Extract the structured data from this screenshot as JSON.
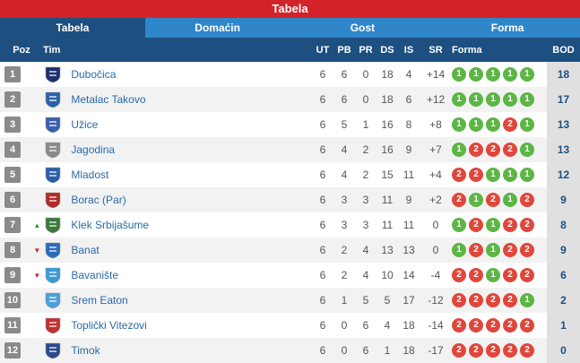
{
  "title": "Tabela",
  "tabs": [
    {
      "label": "Tabela"
    },
    {
      "label": "Domaćin"
    },
    {
      "label": "Gost"
    },
    {
      "label": "Forma"
    }
  ],
  "columns": {
    "poz": "Poz",
    "tim": "Tim",
    "ut": "UT",
    "pb": "PB",
    "pr": "PR",
    "ds": "DS",
    "is": "IS",
    "sr": "SR",
    "forma": "Forma",
    "bod": "BOD"
  },
  "colors": {
    "accent": "#d2232a",
    "header": "#1d4f80",
    "tab": "#2f87c9",
    "win": "#5cb545",
    "loss": "#e0473c"
  },
  "rows": [
    {
      "pos": "1",
      "trend": "",
      "team": "Dubočica",
      "crest": "#1e2f6e",
      "ut": "6",
      "pb": "6",
      "pr": "0",
      "ds": "18",
      "is": "4",
      "sr": "+14",
      "form": [
        "1",
        "1",
        "1",
        "1",
        "1"
      ],
      "bod": "18"
    },
    {
      "pos": "2",
      "trend": "",
      "team": "Metalac Takovo",
      "crest": "#2a62a8",
      "ut": "6",
      "pb": "6",
      "pr": "0",
      "ds": "18",
      "is": "6",
      "sr": "+12",
      "form": [
        "1",
        "1",
        "1",
        "1",
        "1"
      ],
      "bod": "17"
    },
    {
      "pos": "3",
      "trend": "",
      "team": "Užice",
      "crest": "#3a5fb0",
      "ut": "6",
      "pb": "5",
      "pr": "1",
      "ds": "16",
      "is": "8",
      "sr": "+8",
      "form": [
        "1",
        "1",
        "1",
        "2",
        "1"
      ],
      "bod": "13"
    },
    {
      "pos": "4",
      "trend": "",
      "team": "Jagodina",
      "crest": "#8a8a8a",
      "ut": "6",
      "pb": "4",
      "pr": "2",
      "ds": "16",
      "is": "9",
      "sr": "+7",
      "form": [
        "1",
        "2",
        "2",
        "2",
        "1"
      ],
      "bod": "13"
    },
    {
      "pos": "5",
      "trend": "",
      "team": "Mladost",
      "crest": "#2a5ea8",
      "ut": "6",
      "pb": "4",
      "pr": "2",
      "ds": "15",
      "is": "11",
      "sr": "+4",
      "form": [
        "2",
        "2",
        "1",
        "1",
        "1"
      ],
      "bod": "12"
    },
    {
      "pos": "6",
      "trend": "",
      "team": "Borac (Par)",
      "crest": "#b02a2a",
      "ut": "6",
      "pb": "3",
      "pr": "3",
      "ds": "11",
      "is": "9",
      "sr": "+2",
      "form": [
        "2",
        "1",
        "2",
        "1",
        "2"
      ],
      "bod": "9"
    },
    {
      "pos": "7",
      "trend": "up",
      "team": "Klek Srbijašume",
      "crest": "#3a7a3a",
      "ut": "6",
      "pb": "3",
      "pr": "3",
      "ds": "11",
      "is": "11",
      "sr": "0",
      "form": [
        "1",
        "2",
        "1",
        "2",
        "2"
      ],
      "bod": "8"
    },
    {
      "pos": "8",
      "trend": "down",
      "team": "Banat",
      "crest": "#2a6ab8",
      "ut": "6",
      "pb": "2",
      "pr": "4",
      "ds": "13",
      "is": "13",
      "sr": "0",
      "form": [
        "1",
        "2",
        "1",
        "2",
        "2"
      ],
      "bod": "9"
    },
    {
      "pos": "9",
      "trend": "down",
      "team": "Bavanište",
      "crest": "#3a9ad8",
      "ut": "6",
      "pb": "2",
      "pr": "4",
      "ds": "10",
      "is": "14",
      "sr": "-4",
      "form": [
        "2",
        "2",
        "1",
        "2",
        "2"
      ],
      "bod": "6"
    },
    {
      "pos": "10",
      "trend": "",
      "team": "Srem Eaton",
      "crest": "#4aa0d8",
      "ut": "6",
      "pb": "1",
      "pr": "5",
      "ds": "5",
      "is": "17",
      "sr": "-12",
      "form": [
        "2",
        "2",
        "2",
        "2",
        "1"
      ],
      "bod": "2"
    },
    {
      "pos": "11",
      "trend": "",
      "team": "Toplički Vitezovi",
      "crest": "#c03030",
      "ut": "6",
      "pb": "0",
      "pr": "6",
      "ds": "4",
      "is": "18",
      "sr": "-14",
      "form": [
        "2",
        "2",
        "2",
        "2",
        "2"
      ],
      "bod": "1"
    },
    {
      "pos": "12",
      "trend": "",
      "team": "Timok",
      "crest": "#2a4a8a",
      "ut": "6",
      "pb": "0",
      "pr": "6",
      "ds": "1",
      "is": "18",
      "sr": "-17",
      "form": [
        "2",
        "2",
        "2",
        "2",
        "2"
      ],
      "bod": "0"
    }
  ]
}
